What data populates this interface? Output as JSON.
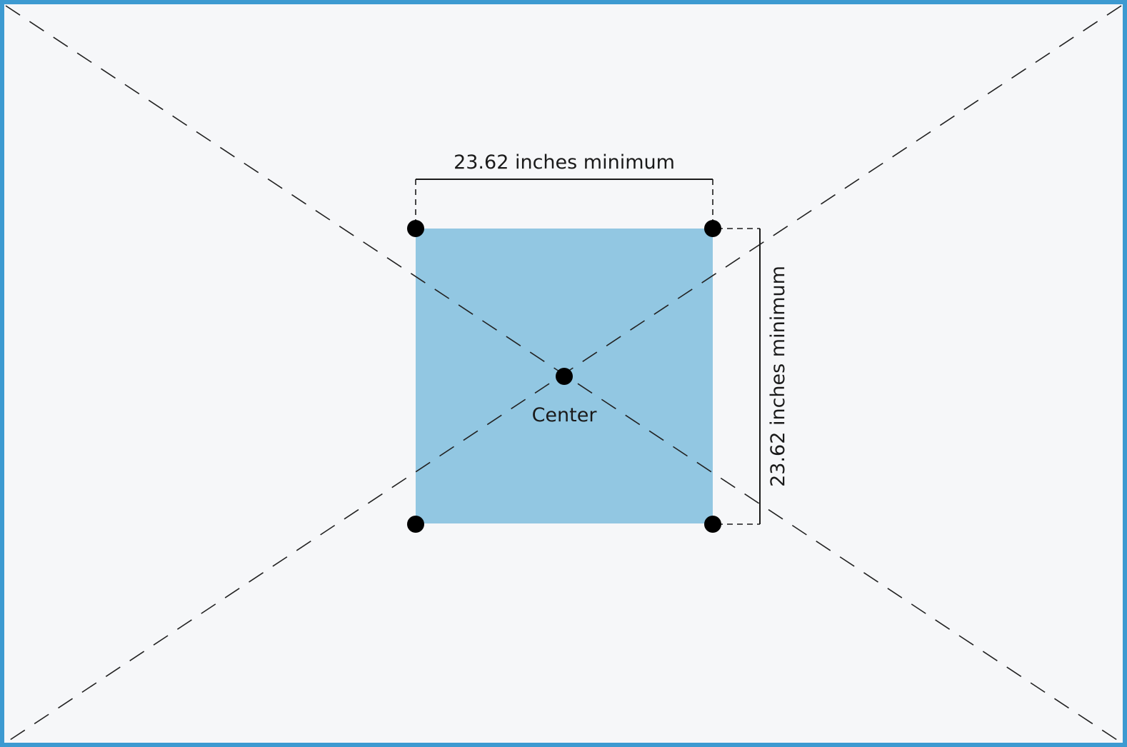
{
  "colors": {
    "frame_border": "#3d9ad1",
    "background": "#f6f7f9",
    "square_fill": "#92c7e2",
    "dash_line": "#222222",
    "dot": "#000000",
    "text": "#1a1a1a"
  },
  "labels": {
    "width_dimension": "23.62 inches minimum",
    "height_dimension": "23.62 inches minimum",
    "center": "Center"
  }
}
